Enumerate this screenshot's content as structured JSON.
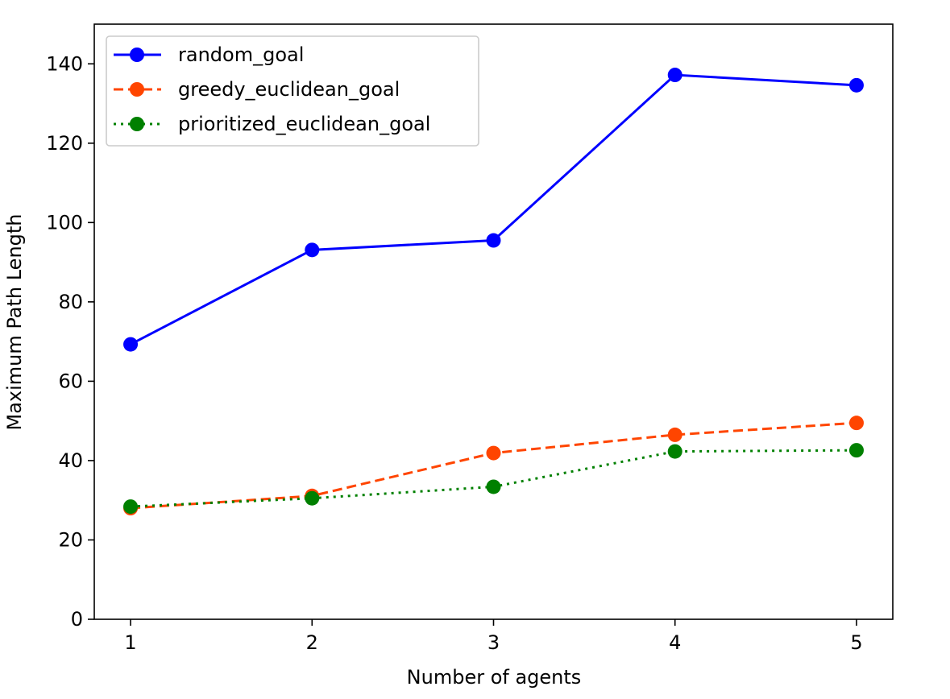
{
  "chart_data": {
    "type": "line",
    "title": "",
    "xlabel": "Number of agents",
    "ylabel": "Maximum Path Length",
    "x": [
      1,
      2,
      3,
      4,
      5
    ],
    "xlim": [
      0.8,
      5.2
    ],
    "ylim": [
      0,
      150
    ],
    "xticks": [
      "1",
      "2",
      "3",
      "4",
      "5"
    ],
    "yticks": [
      "0",
      "20",
      "40",
      "60",
      "80",
      "100",
      "120",
      "140"
    ],
    "grid": false,
    "legend_position": "upper-left",
    "series": [
      {
        "name": "random_goal",
        "color": "#0000ff",
        "line_style": "solid",
        "marker": "circle",
        "values": [
          69.3,
          93.1,
          95.5,
          137.2,
          134.6
        ]
      },
      {
        "name": "greedy_euclidean_goal",
        "color": "#ff4500",
        "line_style": "dashed",
        "marker": "circle",
        "values": [
          28.0,
          31.1,
          41.9,
          46.5,
          49.5
        ]
      },
      {
        "name": "prioritized_euclidean_goal",
        "color": "#008000",
        "line_style": "dotted",
        "marker": "circle",
        "values": [
          28.4,
          30.5,
          33.4,
          42.3,
          42.6
        ]
      }
    ]
  }
}
